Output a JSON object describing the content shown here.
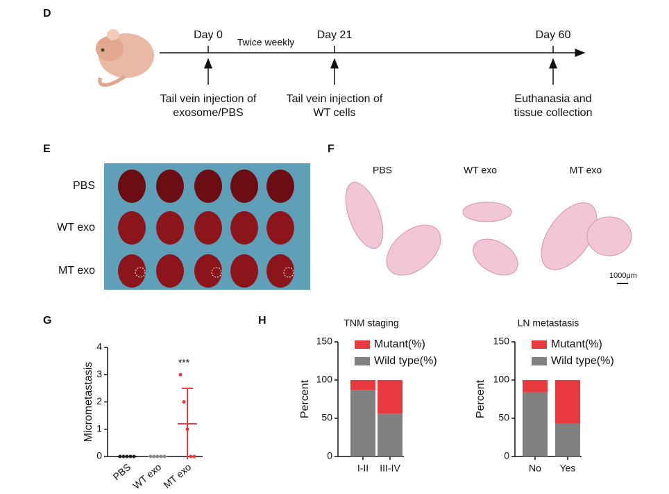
{
  "labels": {
    "d": "D",
    "e": "E",
    "f": "F",
    "g": "G",
    "h": "H"
  },
  "timeline": {
    "days": [
      "Day 0",
      "Day 21",
      "Day 60"
    ],
    "interval": "Twice weekly",
    "events": [
      [
        "Tail vein injection of",
        "exosome/PBS"
      ],
      [
        "Tail vein injection of",
        "WT cells"
      ],
      [
        "Euthanasia and",
        "tissue collection"
      ]
    ]
  },
  "photo": {
    "rows": [
      "PBS",
      "WT exo",
      "MT exo"
    ]
  },
  "histology": {
    "columns": [
      "PBS",
      "WT exo",
      "MT exo"
    ],
    "scale_bar": "1000μm"
  },
  "chart_data": [
    {
      "type": "dot",
      "ylabel": "Micrometastasis",
      "categories": [
        "PBS",
        "WT exo",
        "MT exo"
      ],
      "groups": [
        [
          0,
          0,
          0,
          0,
          0
        ],
        [
          0,
          0,
          0,
          0,
          0
        ],
        [
          3,
          2,
          1,
          0,
          0
        ]
      ],
      "means": [
        0,
        0,
        1.2
      ],
      "errors": [
        0,
        0,
        1.3
      ],
      "colors": [
        "#222222",
        "#888888",
        "#e8393f"
      ],
      "ylim": [
        0,
        4
      ],
      "yticks": [
        0,
        1,
        2,
        3,
        4
      ],
      "annotation": "***"
    },
    {
      "type": "stacked_bar",
      "title": "TNM staging",
      "ylabel": "Percent",
      "categories": [
        "I-II",
        "III-IV"
      ],
      "series": [
        {
          "name": "Mutant(%)",
          "color": "#e8393f",
          "values": [
            13,
            44
          ]
        },
        {
          "name": "Wild type(%)",
          "color": "#808080",
          "values": [
            87,
            56
          ]
        }
      ],
      "ylim": [
        0,
        150
      ],
      "yticks": [
        0,
        50,
        100,
        150
      ]
    },
    {
      "type": "stacked_bar",
      "title": "LN metastasis",
      "ylabel": "Percent",
      "categories": [
        "No",
        "Yes"
      ],
      "series": [
        {
          "name": "Mutant(%)",
          "color": "#e8393f",
          "values": [
            16,
            57
          ]
        },
        {
          "name": "Wild type(%)",
          "color": "#808080",
          "values": [
            84,
            43
          ]
        }
      ],
      "ylim": [
        0,
        150
      ],
      "yticks": [
        0,
        50,
        100,
        150
      ]
    }
  ]
}
